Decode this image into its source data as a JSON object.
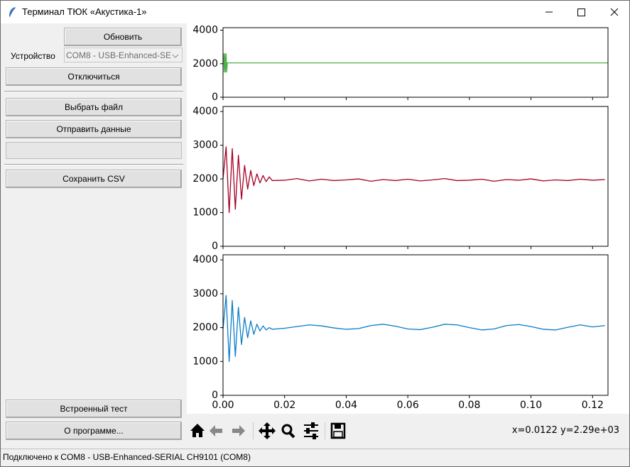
{
  "window": {
    "title": "Терминал ТЮК «Акустика-1»"
  },
  "sidebar": {
    "refresh_button": "Обновить",
    "device_label": "Устройство",
    "device_combo": "COM8 - USB-Enhanced-SE",
    "disconnect_button": "Отключиться",
    "choose_file_button": "Выбрать файл",
    "send_button": "Отправить данные",
    "save_csv_button": "Сохранить CSV",
    "self_test_button": "Встроенный тест",
    "about_button": "О программе..."
  },
  "toolbar": {
    "coordinates": "x=0.0122 y=2.29e+03"
  },
  "status_bar": {
    "text": "Подключено к COM8 - USB-Enhanced-SERIAL CH9101 (COM8)"
  },
  "chart_data": [
    {
      "type": "line",
      "x": [
        0,
        0.0002,
        0.0004,
        0.0006,
        0.0008,
        0.001,
        0.0012,
        0.0014,
        0.125
      ],
      "series": [
        {
          "color": "#4daf4a",
          "values": [
            2048,
            2600,
            1500,
            2600,
            1500,
            2600,
            1500,
            2048,
            2048
          ]
        }
      ],
      "xlim": [
        0,
        0.125
      ],
      "xticks": [
        0,
        0.02,
        0.04,
        0.06,
        0.08,
        0.1,
        0.12
      ],
      "ylim": [
        0,
        4150
      ],
      "yticks": [
        0,
        2000,
        4000
      ]
    },
    {
      "type": "line",
      "x": [
        0,
        0.001,
        0.002,
        0.003,
        0.004,
        0.005,
        0.006,
        0.007,
        0.008,
        0.009,
        0.01,
        0.011,
        0.012,
        0.013,
        0.014,
        0.015,
        0.016,
        0.02,
        0.024,
        0.028,
        0.032,
        0.036,
        0.04,
        0.044,
        0.048,
        0.052,
        0.056,
        0.06,
        0.064,
        0.068,
        0.072,
        0.076,
        0.08,
        0.084,
        0.088,
        0.092,
        0.096,
        0.1,
        0.104,
        0.108,
        0.112,
        0.116,
        0.12,
        0.124
      ],
      "series": [
        {
          "color": "#a50026",
          "values": [
            2000,
            2950,
            1000,
            2900,
            1100,
            2700,
            1400,
            2400,
            1700,
            2250,
            1800,
            2150,
            1880,
            2100,
            1920,
            2060,
            1950,
            1960,
            2010,
            1940,
            1990,
            1950,
            1970,
            2000,
            1930,
            1980,
            1950,
            1990,
            1940,
            1970,
            2010,
            1950,
            1960,
            1990,
            1930,
            1980,
            1960,
            2000,
            1940,
            1970,
            1950,
            1990,
            1960,
            1980
          ]
        }
      ],
      "xlim": [
        0,
        0.125
      ],
      "xticks": [
        0,
        0.02,
        0.04,
        0.06,
        0.08,
        0.1,
        0.12
      ],
      "ylim": [
        0,
        4150
      ],
      "yticks": [
        0,
        1000,
        2000,
        3000,
        4000
      ]
    },
    {
      "type": "line",
      "x": [
        0,
        0.001,
        0.002,
        0.003,
        0.004,
        0.005,
        0.006,
        0.007,
        0.008,
        0.009,
        0.01,
        0.011,
        0.012,
        0.013,
        0.014,
        0.015,
        0.016,
        0.02,
        0.024,
        0.028,
        0.032,
        0.036,
        0.04,
        0.044,
        0.048,
        0.052,
        0.056,
        0.06,
        0.064,
        0.068,
        0.072,
        0.076,
        0.08,
        0.084,
        0.088,
        0.092,
        0.096,
        0.1,
        0.104,
        0.108,
        0.112,
        0.116,
        0.12,
        0.124
      ],
      "series": [
        {
          "color": "#0a7dc8",
          "values": [
            1950,
            2950,
            1000,
            2800,
            1150,
            2600,
            1500,
            2300,
            1700,
            2200,
            1800,
            2100,
            1900,
            2050,
            1930,
            2000,
            1950,
            1980,
            2030,
            2080,
            2050,
            1990,
            1950,
            1970,
            2060,
            2100,
            2040,
            1960,
            1940,
            2010,
            2100,
            2080,
            2000,
            1930,
            1960,
            2060,
            2090,
            2030,
            1950,
            1930,
            2010,
            2080,
            2020,
            2060
          ]
        }
      ],
      "xlim": [
        0,
        0.125
      ],
      "xticks": [
        {
          "value": 0,
          "label": "0.00"
        },
        {
          "value": 0.02,
          "label": "0.02"
        },
        {
          "value": 0.04,
          "label": "0.04"
        },
        {
          "value": 0.06,
          "label": "0.06"
        },
        {
          "value": 0.08,
          "label": "0.08"
        },
        {
          "value": 0.1,
          "label": "0.10"
        },
        {
          "value": 0.12,
          "label": "0.12"
        }
      ],
      "ylim": [
        0,
        4150
      ],
      "yticks": [
        0,
        1000,
        2000,
        3000,
        4000
      ]
    }
  ]
}
